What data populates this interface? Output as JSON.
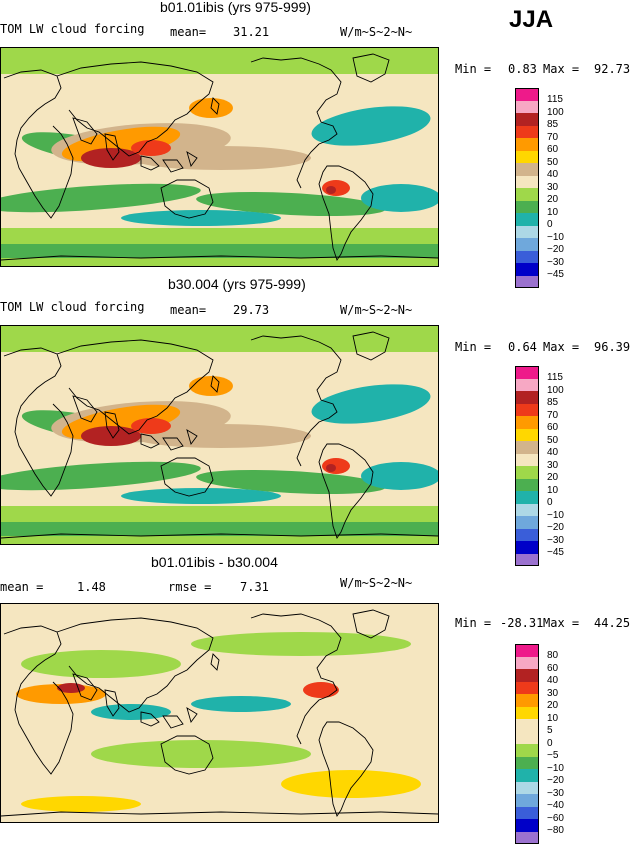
{
  "season": "JJA",
  "units": "W/m~S~2~N~",
  "palette": {
    "p115": "#ee1a8a",
    "p100": "#f7a8c4",
    "p85": "#b22222",
    "p70": "#ee3a1a",
    "p60": "#ff9a00",
    "p50": "#ffd700",
    "p40": "#d2b48c",
    "p30": "#f5e6c0",
    "p20": "#9fd84a",
    "p10": "#4caf50",
    "p0": "#20b2aa",
    "n10": "#add8e6",
    "n20": "#6fa8dc",
    "n30": "#3a5ed9",
    "n45": "#0000c8",
    "nlast": "#9b72cf",
    "coast": "#000000"
  },
  "panels": [
    {
      "title": "b01.01ibis (yrs 975-999)",
      "left_label": "TOM LW cloud forcing",
      "stat_label": "mean=",
      "stat_value": "31.21",
      "units": "W/m~S~2~N~",
      "min_label": "Min =",
      "min_value": "0.83",
      "max_label": "Max =",
      "max_value": "92.73",
      "chart_data": {
        "type": "heatmap",
        "title": "b01.01ibis (yrs 975-999)",
        "variable": "TOM LW cloud forcing",
        "mean": 31.21,
        "min": 0.83,
        "max": 92.73,
        "levels": [
          115,
          100,
          85,
          70,
          60,
          50,
          40,
          30,
          20,
          10,
          0,
          -10,
          -20,
          -30,
          -45
        ]
      }
    },
    {
      "title": "b30.004 (yrs 975-999)",
      "left_label": "TOM LW cloud forcing",
      "stat_label": "mean=",
      "stat_value": "29.73",
      "units": "W/m~S~2~N~",
      "min_label": "Min =",
      "min_value": "0.64",
      "max_label": "Max =",
      "max_value": "96.39",
      "chart_data": {
        "type": "heatmap",
        "title": "b30.004 (yrs 975-999)",
        "variable": "TOM LW cloud forcing",
        "mean": 29.73,
        "min": 0.64,
        "max": 96.39,
        "levels": [
          115,
          100,
          85,
          70,
          60,
          50,
          40,
          30,
          20,
          10,
          0,
          -10,
          -20,
          -30,
          -45
        ]
      }
    },
    {
      "title": "b01.01ibis - b30.004",
      "left_label": "mean =",
      "stat_label": "rmse =",
      "stat_value": "7.31",
      "mean_value": "1.48",
      "units": "W/m~S~2~N~",
      "min_label": "Min =",
      "min_value": "-28.31",
      "max_label": "Max =",
      "max_value": "44.25",
      "chart_data": {
        "type": "heatmap",
        "title": "b01.01ibis - b30.004",
        "variable": "difference",
        "mean": 1.48,
        "rmse": 7.31,
        "min": -28.31,
        "max": 44.25,
        "levels": [
          80,
          60,
          40,
          30,
          20,
          10,
          5,
          0,
          -5,
          -10,
          -20,
          -30,
          -40,
          -60,
          -80
        ]
      }
    }
  ],
  "legend_labels_abs": [
    "115",
    "100",
    "85",
    "70",
    "60",
    "50",
    "40",
    "30",
    "20",
    "10",
    "0",
    "−10",
    "−20",
    "−30",
    "−45"
  ],
  "legend_labels_diff": [
    "80",
    "60",
    "40",
    "30",
    "20",
    "10",
    "5",
    "0",
    "−5",
    "−10",
    "−20",
    "−30",
    "−40",
    "−60",
    "−80"
  ]
}
